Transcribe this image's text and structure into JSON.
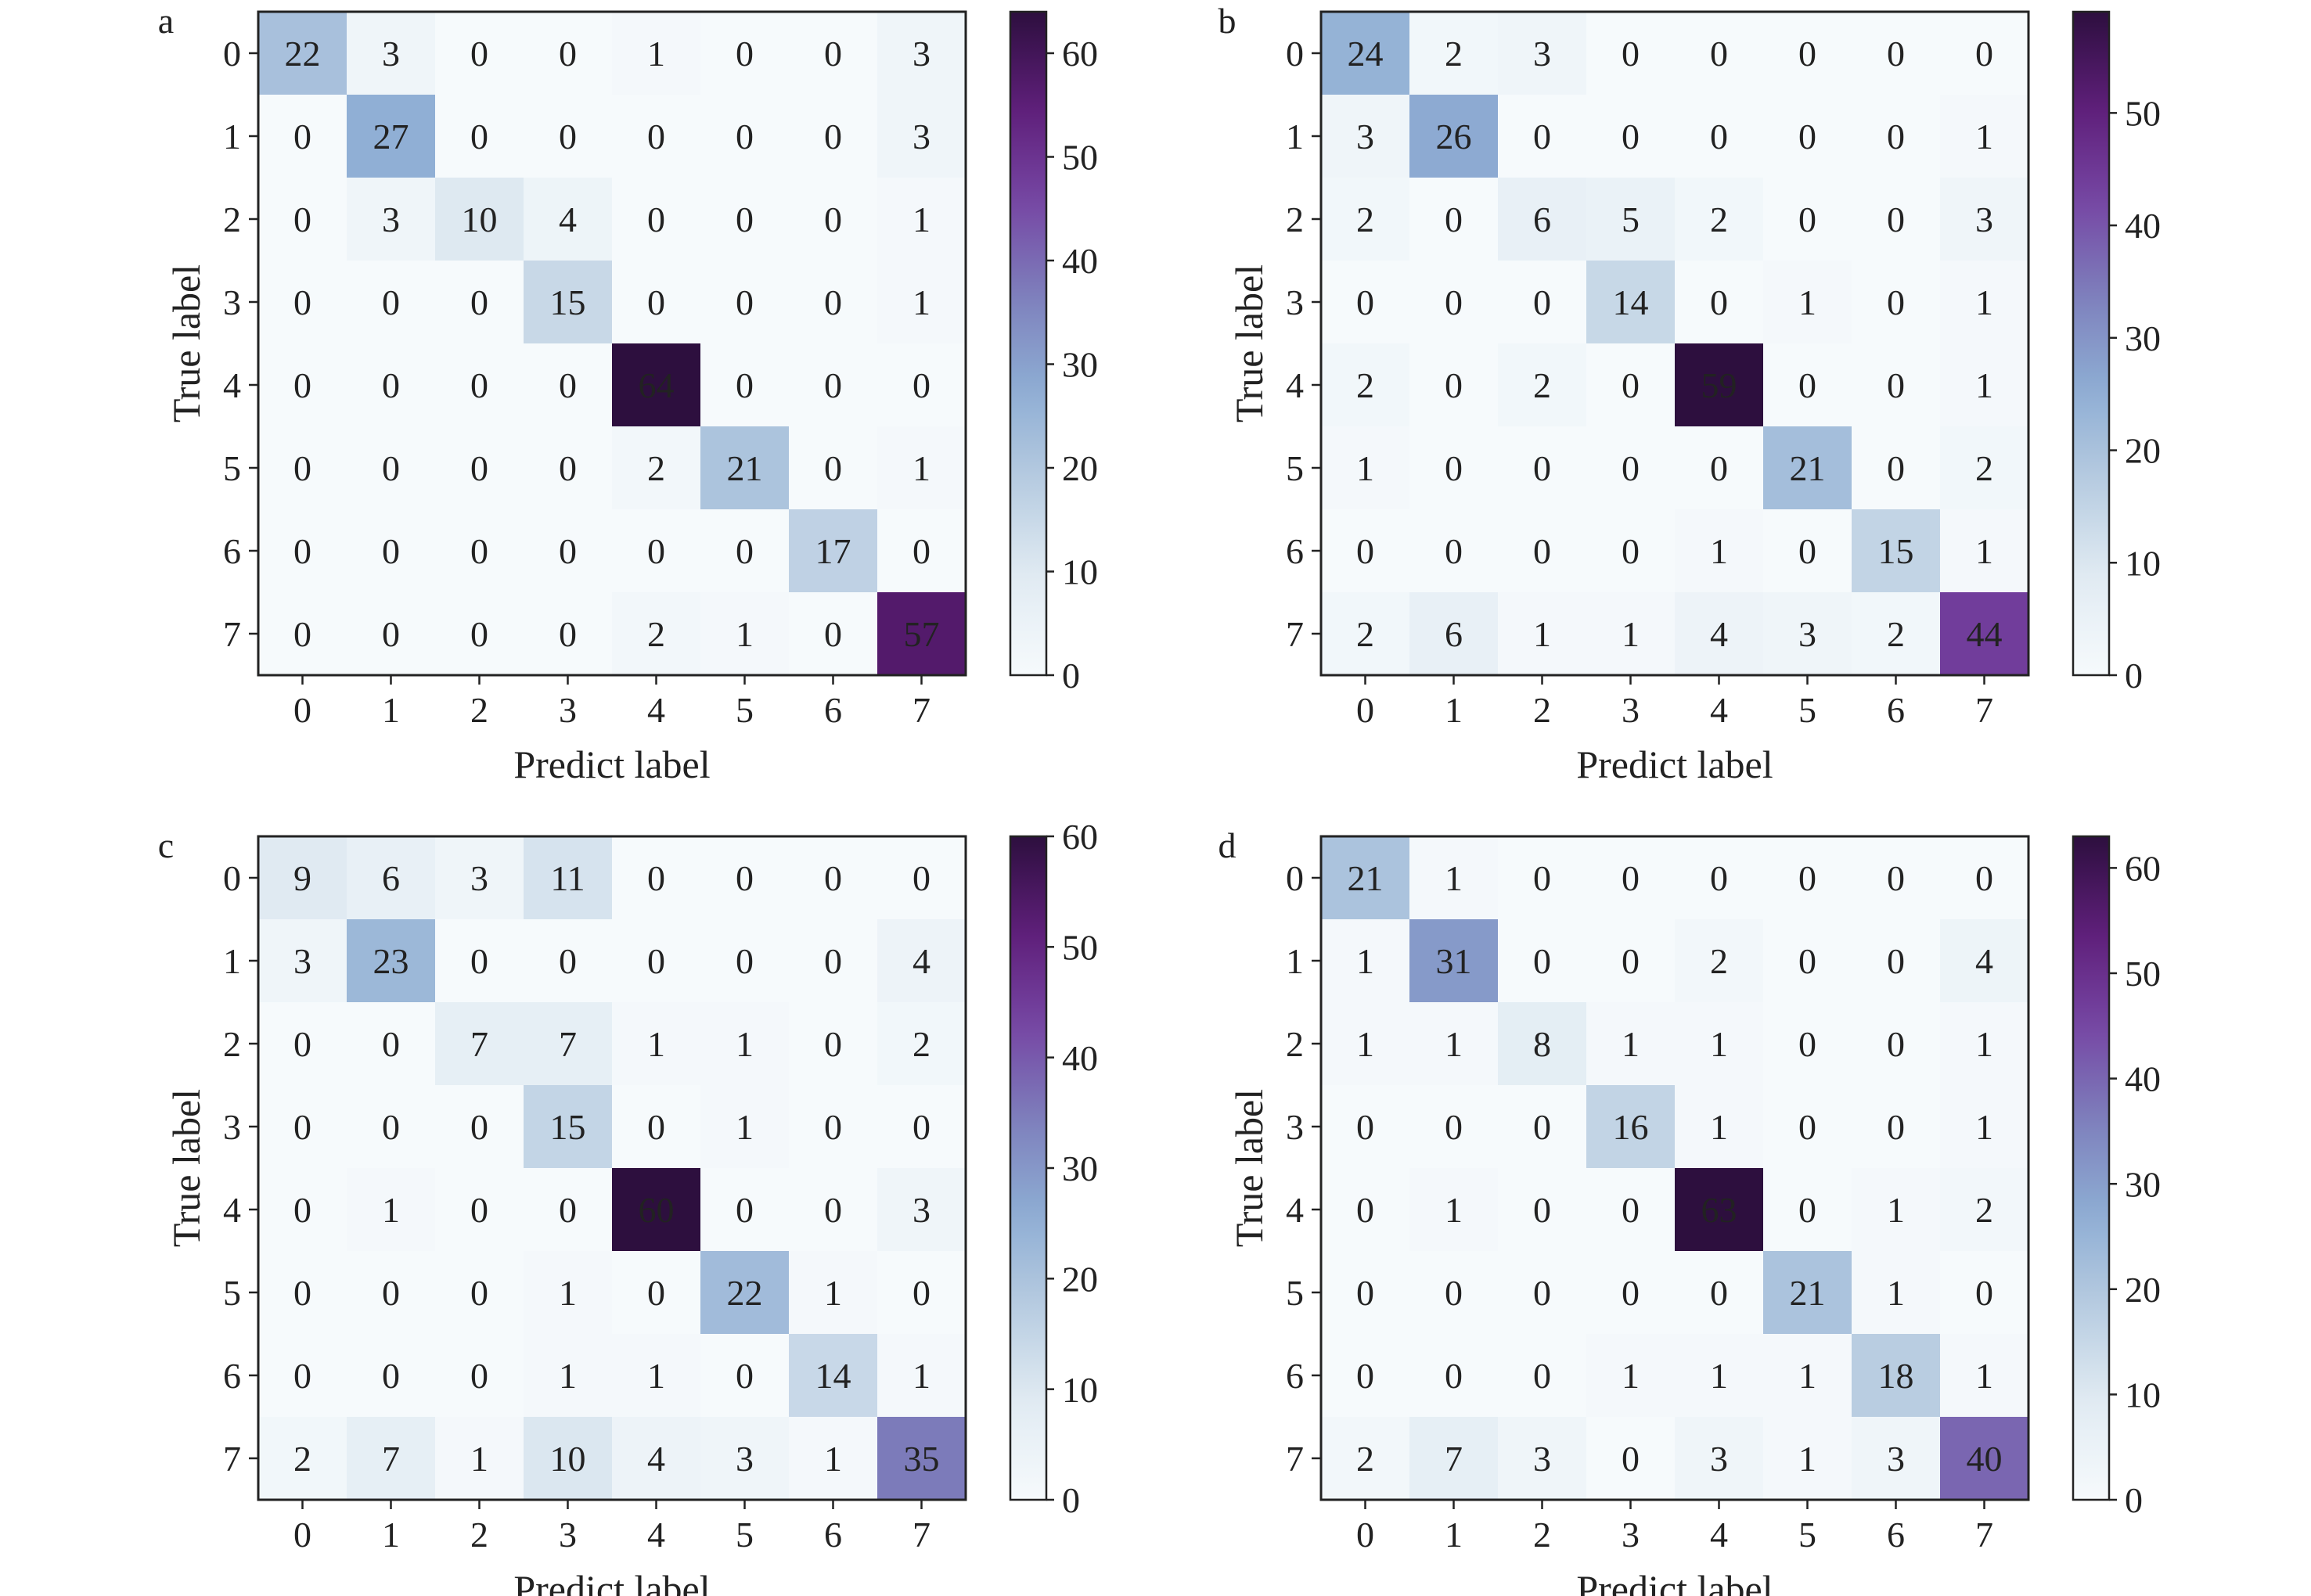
{
  "colormap": {
    "stops": [
      "#f6fafc",
      "#e2ecf3",
      "#b9cde1",
      "#8eaed4",
      "#7d80bc",
      "#7646a4",
      "#5e1e79",
      "#2d0f3e"
    ],
    "text_dark": "#222222",
    "text_light": "#ffffff"
  },
  "chart_data": [
    {
      "panel": "a",
      "type": "heatmap",
      "xlabel": "Predict label",
      "ylabel": "True label",
      "x_ticks": [
        "0",
        "1",
        "2",
        "3",
        "4",
        "5",
        "6",
        "7"
      ],
      "y_ticks": [
        "0",
        "1",
        "2",
        "3",
        "4",
        "5",
        "6",
        "7"
      ],
      "matrix": [
        [
          22,
          3,
          0,
          0,
          1,
          0,
          0,
          3
        ],
        [
          0,
          27,
          0,
          0,
          0,
          0,
          0,
          3
        ],
        [
          0,
          3,
          10,
          4,
          0,
          0,
          0,
          1
        ],
        [
          0,
          0,
          0,
          15,
          0,
          0,
          0,
          1
        ],
        [
          0,
          0,
          0,
          0,
          64,
          0,
          0,
          0
        ],
        [
          0,
          0,
          0,
          0,
          2,
          21,
          0,
          1
        ],
        [
          0,
          0,
          0,
          0,
          0,
          0,
          17,
          0
        ],
        [
          0,
          0,
          0,
          0,
          2,
          1,
          0,
          57
        ]
      ],
      "vmin": 0,
      "vmax": 64,
      "colorbar_ticks": [
        "0",
        "10",
        "20",
        "30",
        "40",
        "50",
        "60"
      ]
    },
    {
      "panel": "b",
      "type": "heatmap",
      "xlabel": "Predict label",
      "ylabel": "True label",
      "x_ticks": [
        "0",
        "1",
        "2",
        "3",
        "4",
        "5",
        "6",
        "7"
      ],
      "y_ticks": [
        "0",
        "1",
        "2",
        "3",
        "4",
        "5",
        "6",
        "7"
      ],
      "matrix": [
        [
          24,
          2,
          3,
          0,
          0,
          0,
          0,
          0
        ],
        [
          3,
          26,
          0,
          0,
          0,
          0,
          0,
          1
        ],
        [
          2,
          0,
          6,
          5,
          2,
          0,
          0,
          3
        ],
        [
          0,
          0,
          0,
          14,
          0,
          1,
          0,
          1
        ],
        [
          2,
          0,
          2,
          0,
          59,
          0,
          0,
          1
        ],
        [
          1,
          0,
          0,
          0,
          0,
          21,
          0,
          2
        ],
        [
          0,
          0,
          0,
          0,
          1,
          0,
          15,
          1
        ],
        [
          2,
          6,
          1,
          1,
          4,
          3,
          2,
          44
        ]
      ],
      "vmin": 0,
      "vmax": 59,
      "colorbar_ticks": [
        "0",
        "10",
        "20",
        "30",
        "40",
        "50"
      ]
    },
    {
      "panel": "c",
      "type": "heatmap",
      "xlabel": "Predict label",
      "ylabel": "True label",
      "x_ticks": [
        "0",
        "1",
        "2",
        "3",
        "4",
        "5",
        "6",
        "7"
      ],
      "y_ticks": [
        "0",
        "1",
        "2",
        "3",
        "4",
        "5",
        "6",
        "7"
      ],
      "matrix": [
        [
          9,
          6,
          3,
          11,
          0,
          0,
          0,
          0
        ],
        [
          3,
          23,
          0,
          0,
          0,
          0,
          0,
          4
        ],
        [
          0,
          0,
          7,
          7,
          1,
          1,
          0,
          2
        ],
        [
          0,
          0,
          0,
          15,
          0,
          1,
          0,
          0
        ],
        [
          0,
          1,
          0,
          0,
          60,
          0,
          0,
          3
        ],
        [
          0,
          0,
          0,
          1,
          0,
          22,
          1,
          0
        ],
        [
          0,
          0,
          0,
          1,
          1,
          0,
          14,
          1
        ],
        [
          2,
          7,
          1,
          10,
          4,
          3,
          1,
          35
        ]
      ],
      "vmin": 0,
      "vmax": 60,
      "colorbar_ticks": [
        "0",
        "10",
        "20",
        "30",
        "40",
        "50",
        "60"
      ]
    },
    {
      "panel": "d",
      "type": "heatmap",
      "xlabel": "Predict label",
      "ylabel": "True label",
      "x_ticks": [
        "0",
        "1",
        "2",
        "3",
        "4",
        "5",
        "6",
        "7"
      ],
      "y_ticks": [
        "0",
        "1",
        "2",
        "3",
        "4",
        "5",
        "6",
        "7"
      ],
      "matrix": [
        [
          21,
          1,
          0,
          0,
          0,
          0,
          0,
          0
        ],
        [
          1,
          31,
          0,
          0,
          2,
          0,
          0,
          4
        ],
        [
          1,
          1,
          8,
          1,
          1,
          0,
          0,
          1
        ],
        [
          0,
          0,
          0,
          16,
          1,
          0,
          0,
          1
        ],
        [
          0,
          1,
          0,
          0,
          63,
          0,
          1,
          2
        ],
        [
          0,
          0,
          0,
          0,
          0,
          21,
          1,
          0
        ],
        [
          0,
          0,
          0,
          1,
          1,
          1,
          18,
          1
        ],
        [
          2,
          7,
          3,
          0,
          3,
          1,
          3,
          40
        ]
      ],
      "vmin": 0,
      "vmax": 63,
      "colorbar_ticks": [
        "0",
        "10",
        "20",
        "30",
        "40",
        "50",
        "60"
      ]
    }
  ]
}
